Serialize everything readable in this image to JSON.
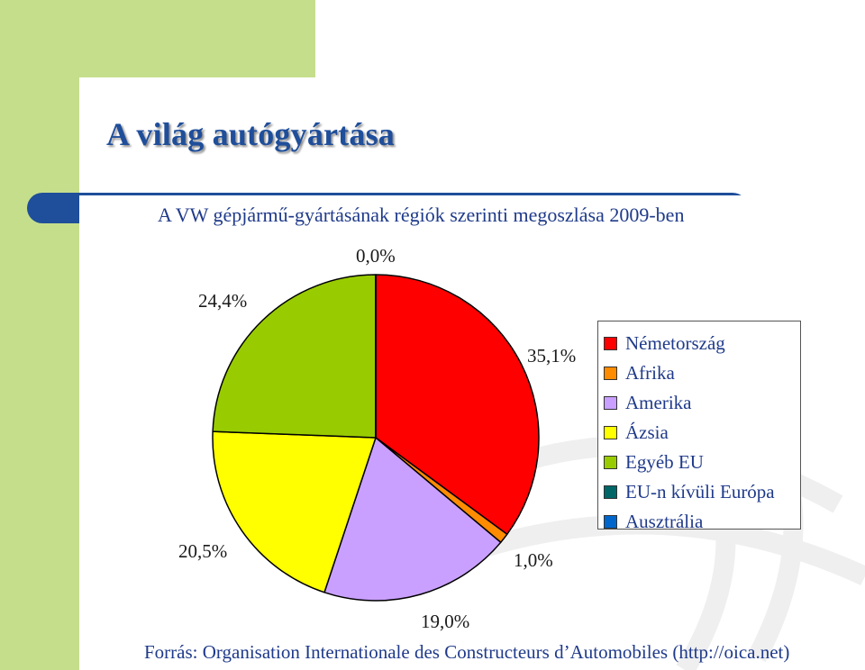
{
  "slide": {
    "title": "A világ autógyártása",
    "source": "Forrás: Organisation Internationale des Constructeurs d’Automobiles (http://oica.net)"
  },
  "colors": {
    "accent_green": "#C5DE8C",
    "accent_blue": "#1F4E9A",
    "text_blue": "#1F3A8A"
  },
  "chart_data": {
    "type": "pie",
    "title": "A VW gépjármű-gyártásának régiók szerinti megoszlása 2009-ben",
    "start_angle_deg": 0,
    "direction": "clockwise",
    "legend_position": "right",
    "slices": [
      {
        "name": "Németország",
        "value": 35.1,
        "label": "35,1%",
        "color": "#FF0000"
      },
      {
        "name": "Afrika",
        "value": 1.0,
        "label": "1,0%",
        "color": "#FF8C00"
      },
      {
        "name": "Amerika",
        "value": 19.0,
        "label": "19,0%",
        "color": "#C9A0FF"
      },
      {
        "name": "Ázsia",
        "value": 20.5,
        "label": "20,5%",
        "color": "#FFFF00"
      },
      {
        "name": "Egyéb EU",
        "value": 24.4,
        "label": "24,4%",
        "color": "#99CC00"
      },
      {
        "name": "EU-n kívüli Európa",
        "value": 0.0,
        "label": "0,0%",
        "color": "#006666"
      },
      {
        "name": "Ausztrália",
        "value": 0.0,
        "label": "",
        "color": "#0066CC"
      }
    ]
  }
}
